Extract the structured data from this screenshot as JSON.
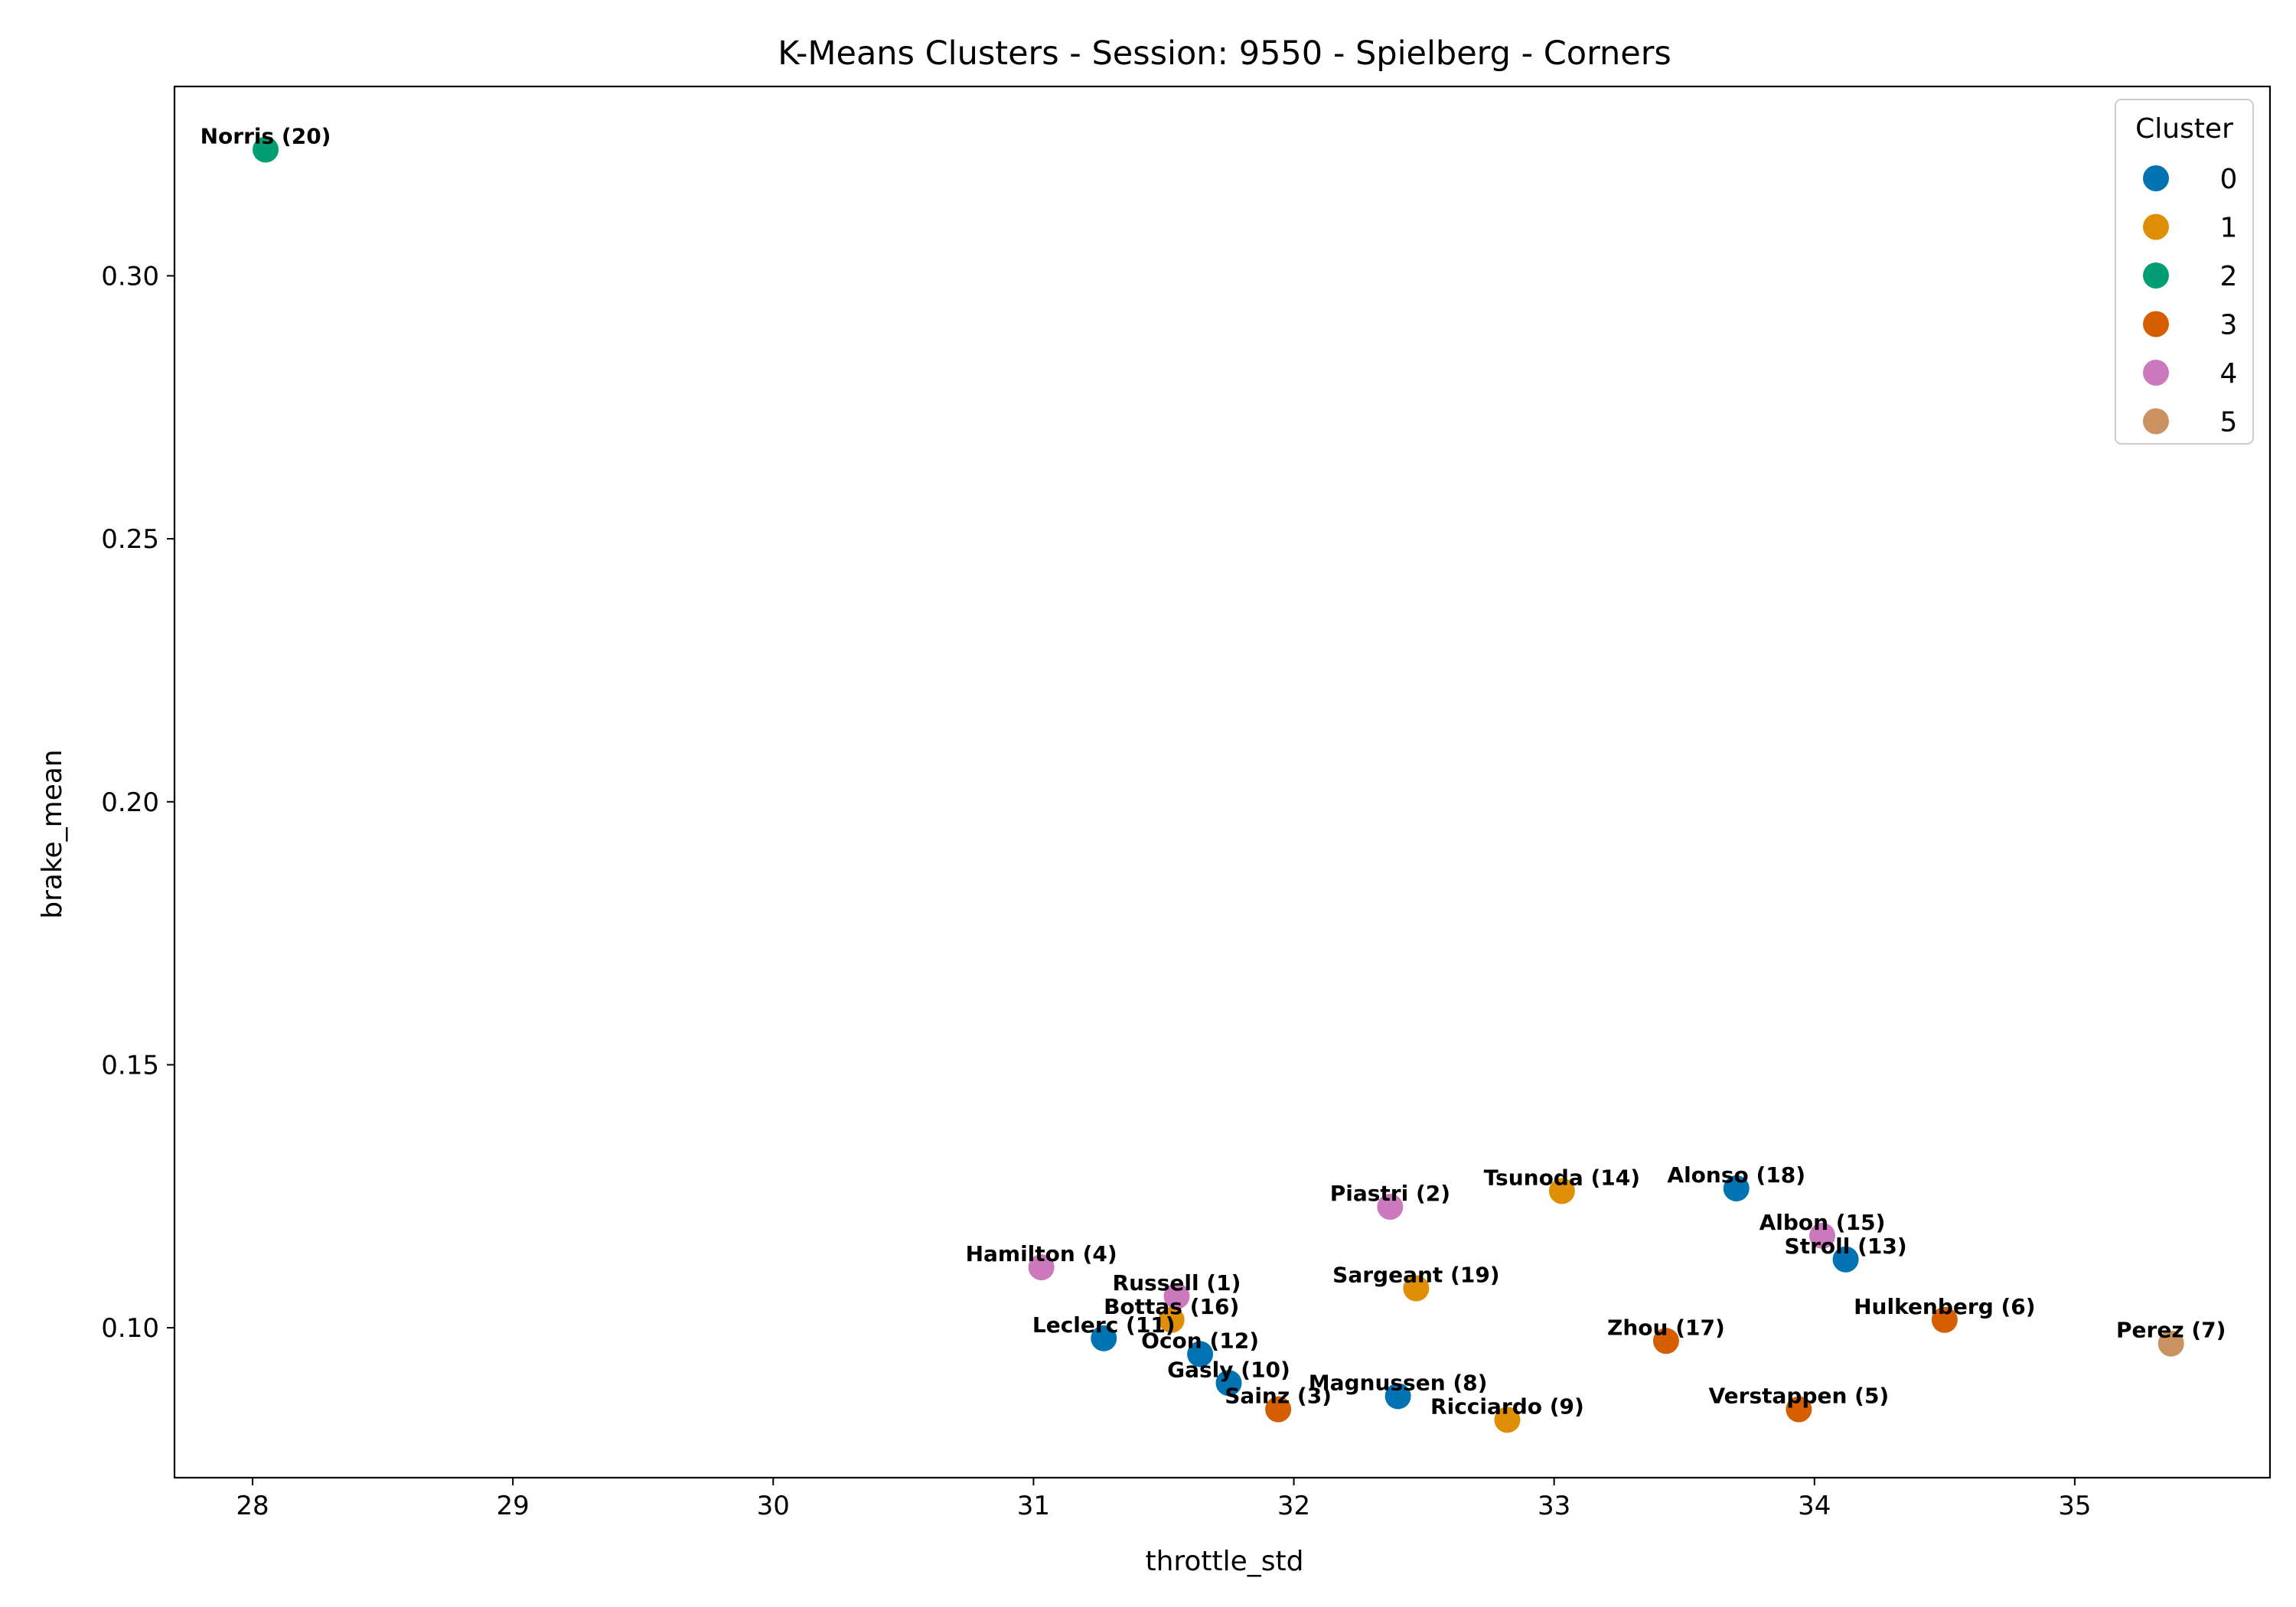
{
  "chart_data": {
    "type": "scatter",
    "title": "K-Means Clusters - Session: 9550 - Spielberg - Corners",
    "xlabel": "throttle_std",
    "ylabel": "brake_mean",
    "xlim": [
      27.7,
      35.75
    ],
    "ylim": [
      0.0715,
      0.336
    ],
    "xticks": [
      28,
      29,
      30,
      31,
      32,
      33,
      34,
      35
    ],
    "xtick_labels": [
      "28",
      "29",
      "30",
      "31",
      "32",
      "33",
      "34",
      "35"
    ],
    "yticks": [
      0.1,
      0.15,
      0.2,
      0.25,
      0.3
    ],
    "ytick_labels": [
      "0.10",
      "0.15",
      "0.20",
      "0.25",
      "0.30"
    ],
    "grid": false,
    "legend": {
      "title": "Cluster",
      "placement": "top-right",
      "entries": [
        "0",
        "1",
        "2",
        "3",
        "4",
        "5"
      ]
    },
    "cluster_colors": [
      "#0173b2",
      "#de8f05",
      "#029e73",
      "#d55e00",
      "#cc78bc",
      "#ca9161"
    ],
    "points": [
      {
        "label": "Norris (20)",
        "x": 28.05,
        "y": 0.324,
        "cluster": 2
      },
      {
        "label": "Piastri (2)",
        "x": 32.37,
        "y": 0.123,
        "cluster": 4
      },
      {
        "label": "Tsunoda (14)",
        "x": 33.03,
        "y": 0.126,
        "cluster": 1
      },
      {
        "label": "Alonso (18)",
        "x": 33.7,
        "y": 0.1265,
        "cluster": 0
      },
      {
        "label": "Albon (15)",
        "x": 34.03,
        "y": 0.1175,
        "cluster": 4
      },
      {
        "label": "Stroll (13)",
        "x": 34.12,
        "y": 0.113,
        "cluster": 0
      },
      {
        "label": "Hamilton (4)",
        "x": 31.03,
        "y": 0.1115,
        "cluster": 4
      },
      {
        "label": "Russell (1)",
        "x": 31.55,
        "y": 0.106,
        "cluster": 4
      },
      {
        "label": "Sargeant (19)",
        "x": 32.47,
        "y": 0.1075,
        "cluster": 1
      },
      {
        "label": "Bottas (16)",
        "x": 31.53,
        "y": 0.1015,
        "cluster": 1
      },
      {
        "label": "Hulkenberg (6)",
        "x": 34.5,
        "y": 0.1015,
        "cluster": 3
      },
      {
        "label": "Leclerc (11)",
        "x": 31.27,
        "y": 0.098,
        "cluster": 0
      },
      {
        "label": "Zhou (17)",
        "x": 33.43,
        "y": 0.0975,
        "cluster": 3
      },
      {
        "label": "Perez (7)",
        "x": 35.37,
        "y": 0.097,
        "cluster": 5
      },
      {
        "label": "Ocon (12)",
        "x": 31.64,
        "y": 0.095,
        "cluster": 0
      },
      {
        "label": "Gasly (10)",
        "x": 31.75,
        "y": 0.0895,
        "cluster": 0
      },
      {
        "label": "Magnussen (8)",
        "x": 32.4,
        "y": 0.087,
        "cluster": 0
      },
      {
        "label": "Sainz (3)",
        "x": 31.94,
        "y": 0.0845,
        "cluster": 3
      },
      {
        "label": "Ricciardo (9)",
        "x": 32.82,
        "y": 0.0825,
        "cluster": 1
      },
      {
        "label": "Verstappen (5)",
        "x": 33.94,
        "y": 0.0845,
        "cluster": 3
      }
    ]
  }
}
